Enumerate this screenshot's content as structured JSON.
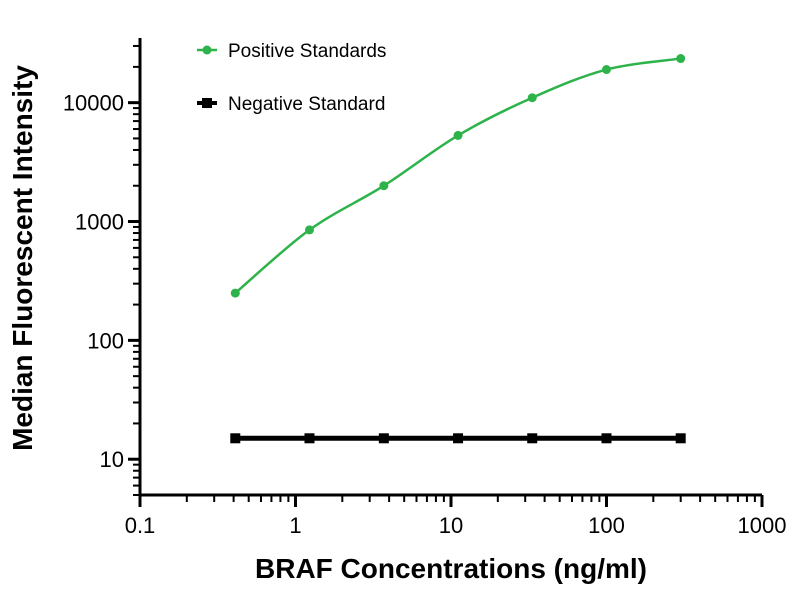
{
  "chart_data": {
    "type": "line",
    "xlabel": "BRAF Concentrations (ng/ml)",
    "ylabel": "Median Fluorescent Intensity",
    "x_scale": "log",
    "y_scale": "log",
    "xlim": [
      0.1,
      1000
    ],
    "ylim": [
      5,
      35000
    ],
    "x_ticks": [
      0.1,
      1,
      10,
      100,
      1000
    ],
    "x_tick_labels": [
      "0.1",
      "1",
      "10",
      "100",
      "1000"
    ],
    "y_ticks": [
      10,
      100,
      1000,
      10000
    ],
    "y_tick_labels": [
      "10",
      "100",
      "1000",
      "10000"
    ],
    "grid": false,
    "legend_position": "top-left",
    "series": [
      {
        "name": "Positive Standards",
        "color": "#2db34a",
        "marker": "circle",
        "x": [
          0.41,
          1.23,
          3.7,
          11.1,
          33.3,
          100,
          300
        ],
        "y": [
          250,
          850,
          2000,
          5300,
          11000,
          19000,
          23500
        ]
      },
      {
        "name": "Negative Standard",
        "color": "#000000",
        "marker": "square",
        "x": [
          0.41,
          1.23,
          3.7,
          11.1,
          33.3,
          100,
          300
        ],
        "y": [
          15,
          15,
          15,
          15,
          15,
          15,
          15
        ]
      }
    ]
  }
}
